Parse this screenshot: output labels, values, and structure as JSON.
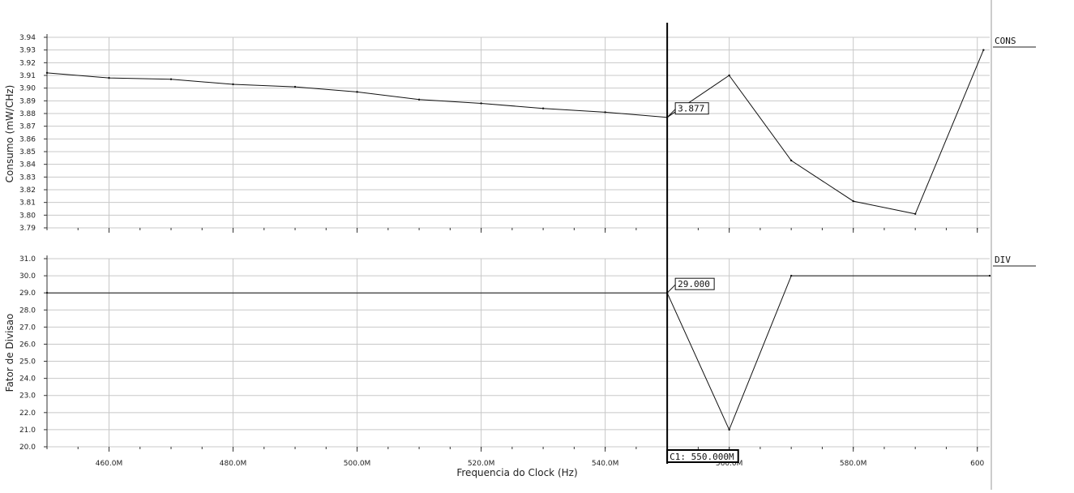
{
  "xaxis": {
    "label": "Frequencia do Clock (Hz)",
    "min": 450,
    "max": 602,
    "ticks": [
      460,
      480,
      500,
      520,
      540,
      560,
      580,
      600
    ],
    "tick_labels": [
      "460.0M",
      "480.0M",
      "500.0M",
      "520.0M",
      "540.0M",
      "560.0M",
      "580.0M",
      "600"
    ],
    "minor_step": 5
  },
  "cursor": {
    "x": 550,
    "label": "C1: 550.000M"
  },
  "chart_data": [
    {
      "type": "line",
      "panel": "top",
      "series_name": "CONS",
      "ylabel": "Consumo (mW/CHz)",
      "ylim": [
        3.79,
        3.94
      ],
      "yticks": [
        3.79,
        3.8,
        3.81,
        3.82,
        3.83,
        3.84,
        3.85,
        3.86,
        3.87,
        3.88,
        3.89,
        3.9,
        3.91,
        3.92,
        3.93,
        3.94
      ],
      "ytick_labels": [
        "3.79",
        "3.80",
        "3.81",
        "3.82",
        "3.83",
        "3.84",
        "3.85",
        "3.86",
        "3.87",
        "3.88",
        "3.89",
        "3.90",
        "3.91",
        "3.92",
        "3.93",
        "3.94"
      ],
      "x": [
        450,
        460,
        470,
        480,
        490,
        500,
        510,
        520,
        530,
        540,
        550,
        560,
        570,
        580,
        590,
        601
      ],
      "y": [
        3.912,
        3.908,
        3.907,
        3.903,
        3.901,
        3.897,
        3.891,
        3.888,
        3.884,
        3.881,
        3.877,
        3.91,
        3.843,
        3.811,
        3.801,
        3.93
      ],
      "marker_label": "3.877",
      "grid": true
    },
    {
      "type": "line",
      "panel": "bottom",
      "series_name": "DIV",
      "ylabel": "Fator de Divisao",
      "ylim": [
        20.0,
        31.0
      ],
      "yticks": [
        20.0,
        21.0,
        22.0,
        23.0,
        24.0,
        25.0,
        26.0,
        27.0,
        28.0,
        29.0,
        30.0,
        31.0
      ],
      "ytick_labels": [
        "20.0",
        "21.0",
        "22.0",
        "23.0",
        "24.0",
        "25.0",
        "26.0",
        "27.0",
        "28.0",
        "29.0",
        "30.0",
        "31.0"
      ],
      "x": [
        450,
        550,
        560,
        570,
        602
      ],
      "y": [
        29.0,
        29.0,
        21.0,
        30.0,
        30.0
      ],
      "marker_label": "29.000",
      "grid": true
    }
  ]
}
